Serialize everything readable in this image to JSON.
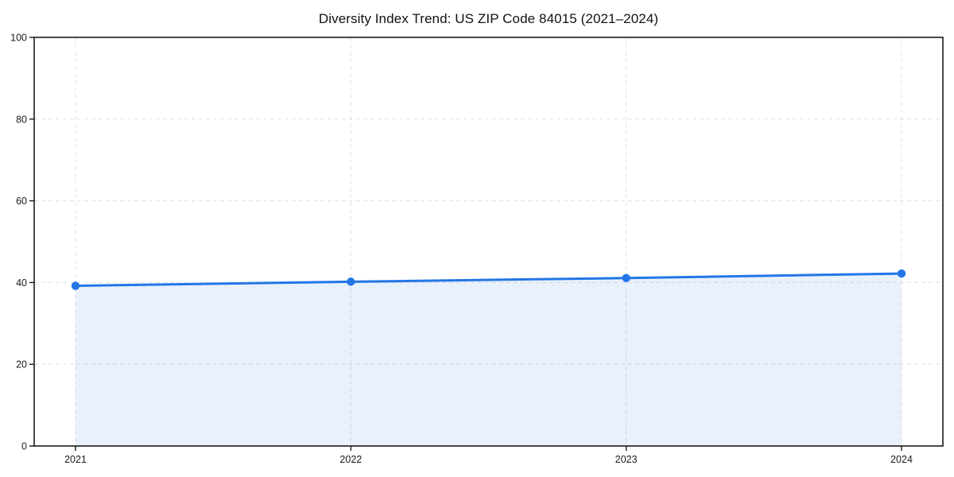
{
  "chart_data": {
    "type": "area",
    "title": "Diversity Index Trend: US ZIP Code 84015 (2021–2024)",
    "x": [
      2021,
      2022,
      2023,
      2024
    ],
    "series": [
      {
        "name": "Diversity Index",
        "values": [
          39.2,
          40.2,
          41.1,
          42.2
        ]
      }
    ],
    "xlabel": "",
    "ylabel": "",
    "ylim": [
      0,
      100
    ],
    "yticks": [
      0,
      20,
      40,
      60,
      80,
      100
    ],
    "xtick_labels": [
      "2021",
      "2022",
      "2023",
      "2024"
    ],
    "grid": "dashed, horizontal and vertical, drawn below data",
    "legend": "none",
    "marker": "circle",
    "colors": {
      "line": "#2376e6",
      "marker": "#2376e6",
      "area_fill": "rgba(35,118,230,0.10)",
      "gridline": "#e0e0e0",
      "spine": "#1a1a1a",
      "tick_label": "#1a1a1a",
      "background": "#ffffff"
    }
  }
}
